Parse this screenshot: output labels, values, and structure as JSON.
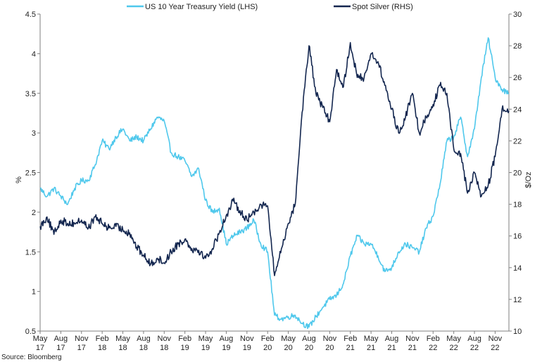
{
  "chart_data": {
    "type": "line",
    "title": "",
    "source": "Source: Bloomberg",
    "x_range": [
      "2017-05",
      "2023-01"
    ],
    "x_ticks": [
      {
        "date": "2017-05",
        "line1": "May",
        "line2": "17"
      },
      {
        "date": "2017-08",
        "line1": "Aug",
        "line2": "17"
      },
      {
        "date": "2017-11",
        "line1": "Nov",
        "line2": "17"
      },
      {
        "date": "2018-02",
        "line1": "Feb",
        "line2": "18"
      },
      {
        "date": "2018-05",
        "line1": "May",
        "line2": "18"
      },
      {
        "date": "2018-08",
        "line1": "Aug",
        "line2": "18"
      },
      {
        "date": "2018-11",
        "line1": "Nov",
        "line2": "18"
      },
      {
        "date": "2019-02",
        "line1": "Feb",
        "line2": "19"
      },
      {
        "date": "2019-05",
        "line1": "May",
        "line2": "19"
      },
      {
        "date": "2019-08",
        "line1": "Aug",
        "line2": "19"
      },
      {
        "date": "2019-11",
        "line1": "Nov",
        "line2": "19"
      },
      {
        "date": "2020-02",
        "line1": "Feb",
        "line2": "20"
      },
      {
        "date": "2020-05",
        "line1": "May",
        "line2": "20"
      },
      {
        "date": "2020-08",
        "line1": "Aug",
        "line2": "20"
      },
      {
        "date": "2020-11",
        "line1": "Nov",
        "line2": "20"
      },
      {
        "date": "2021-02",
        "line1": "Feb",
        "line2": "21"
      },
      {
        "date": "2021-05",
        "line1": "May",
        "line2": "21"
      },
      {
        "date": "2021-08",
        "line1": "Aug",
        "line2": "21"
      },
      {
        "date": "2021-11",
        "line1": "Nov",
        "line2": "21"
      },
      {
        "date": "2022-02",
        "line1": "Feb",
        "line2": "22"
      },
      {
        "date": "2022-05",
        "line1": "May",
        "line2": "22"
      },
      {
        "date": "2022-08",
        "line1": "Aug",
        "line2": "22"
      },
      {
        "date": "2022-11",
        "line1": "Nov",
        "line2": "22"
      }
    ],
    "y_left": {
      "label": "%",
      "range": [
        0.5,
        4.5
      ],
      "ticks": [
        "0.5",
        "1",
        "1.5",
        "2",
        "2.5",
        "3",
        "3.5",
        "4",
        "4.5"
      ]
    },
    "y_right": {
      "label": "$/Oz",
      "range": [
        10,
        30
      ],
      "ticks": [
        "10",
        "12",
        "14",
        "16",
        "18",
        "20",
        "22",
        "24",
        "26",
        "28",
        "30"
      ]
    },
    "legend_position": "top-center",
    "grid": false,
    "series": [
      {
        "name": "US 10 Year Treasury Yield (LHS)",
        "axis": "left",
        "color": "#4fc8ec",
        "x": [
          "2017-05",
          "2017-06",
          "2017-07",
          "2017-08",
          "2017-09",
          "2017-10",
          "2017-11",
          "2017-12",
          "2018-01",
          "2018-02",
          "2018-03",
          "2018-04",
          "2018-05",
          "2018-06",
          "2018-07",
          "2018-08",
          "2018-09",
          "2018-10",
          "2018-11",
          "2018-12",
          "2019-01",
          "2019-02",
          "2019-03",
          "2019-04",
          "2019-05",
          "2019-06",
          "2019-07",
          "2019-08",
          "2019-09",
          "2019-10",
          "2019-11",
          "2019-12",
          "2020-01",
          "2020-02",
          "2020-03",
          "2020-04",
          "2020-05",
          "2020-06",
          "2020-07",
          "2020-08",
          "2020-09",
          "2020-10",
          "2020-11",
          "2020-12",
          "2021-01",
          "2021-02",
          "2021-03",
          "2021-04",
          "2021-05",
          "2021-06",
          "2021-07",
          "2021-08",
          "2021-09",
          "2021-10",
          "2021-11",
          "2021-12",
          "2022-01",
          "2022-02",
          "2022-03",
          "2022-04",
          "2022-05",
          "2022-06",
          "2022-07",
          "2022-08",
          "2022-09",
          "2022-10",
          "2022-11",
          "2022-12",
          "2023-01"
        ],
        "y": [
          2.3,
          2.2,
          2.3,
          2.2,
          2.1,
          2.3,
          2.4,
          2.4,
          2.6,
          2.9,
          2.8,
          2.95,
          3.05,
          2.9,
          2.95,
          2.9,
          3.05,
          3.2,
          3.15,
          2.75,
          2.7,
          2.65,
          2.45,
          2.55,
          2.15,
          2.0,
          2.05,
          1.6,
          1.7,
          1.75,
          1.8,
          1.9,
          1.6,
          1.5,
          0.7,
          0.65,
          0.68,
          0.7,
          0.6,
          0.55,
          0.68,
          0.8,
          0.9,
          0.95,
          1.1,
          1.45,
          1.7,
          1.6,
          1.6,
          1.45,
          1.25,
          1.3,
          1.5,
          1.6,
          1.55,
          1.5,
          1.8,
          1.95,
          2.35,
          2.9,
          2.95,
          3.2,
          2.7,
          3.05,
          3.7,
          4.2,
          3.7,
          3.55,
          3.5
        ]
      },
      {
        "name": "Spot Silver (RHS)",
        "axis": "right",
        "color": "#13264f",
        "x": [
          "2017-05",
          "2017-06",
          "2017-07",
          "2017-08",
          "2017-09",
          "2017-10",
          "2017-11",
          "2017-12",
          "2018-01",
          "2018-02",
          "2018-03",
          "2018-04",
          "2018-05",
          "2018-06",
          "2018-07",
          "2018-08",
          "2018-09",
          "2018-10",
          "2018-11",
          "2018-12",
          "2019-01",
          "2019-02",
          "2019-03",
          "2019-04",
          "2019-05",
          "2019-06",
          "2019-07",
          "2019-08",
          "2019-09",
          "2019-10",
          "2019-11",
          "2019-12",
          "2020-01",
          "2020-02",
          "2020-03",
          "2020-04",
          "2020-05",
          "2020-06",
          "2020-07",
          "2020-08",
          "2020-09",
          "2020-10",
          "2020-11",
          "2020-12",
          "2021-01",
          "2021-02",
          "2021-03",
          "2021-04",
          "2021-05",
          "2021-06",
          "2021-07",
          "2021-08",
          "2021-09",
          "2021-10",
          "2021-11",
          "2021-12",
          "2022-01",
          "2022-02",
          "2022-03",
          "2022-04",
          "2022-05",
          "2022-06",
          "2022-07",
          "2022-08",
          "2022-09",
          "2022-10",
          "2022-11",
          "2022-12",
          "2023-01"
        ],
        "y": [
          16.6,
          17.2,
          16.1,
          17.0,
          16.8,
          16.8,
          17.0,
          16.5,
          17.2,
          16.8,
          16.5,
          16.6,
          16.4,
          16.2,
          15.3,
          14.8,
          14.2,
          14.6,
          14.3,
          15.0,
          15.5,
          15.8,
          15.2,
          15.1,
          14.6,
          15.2,
          16.2,
          17.3,
          18.2,
          17.6,
          17.0,
          17.5,
          18.0,
          17.9,
          13.5,
          15.2,
          16.8,
          18.0,
          23.8,
          28.0,
          25.0,
          24.1,
          23.2,
          26.5,
          25.4,
          28.2,
          26.0,
          26.0,
          27.5,
          27.0,
          25.5,
          24.0,
          22.5,
          23.5,
          25.0,
          22.5,
          23.5,
          24.3,
          25.5,
          25.0,
          21.5,
          21.2,
          18.7,
          20.0,
          18.5,
          19.2,
          21.0,
          24.0,
          23.9
        ]
      }
    ]
  }
}
